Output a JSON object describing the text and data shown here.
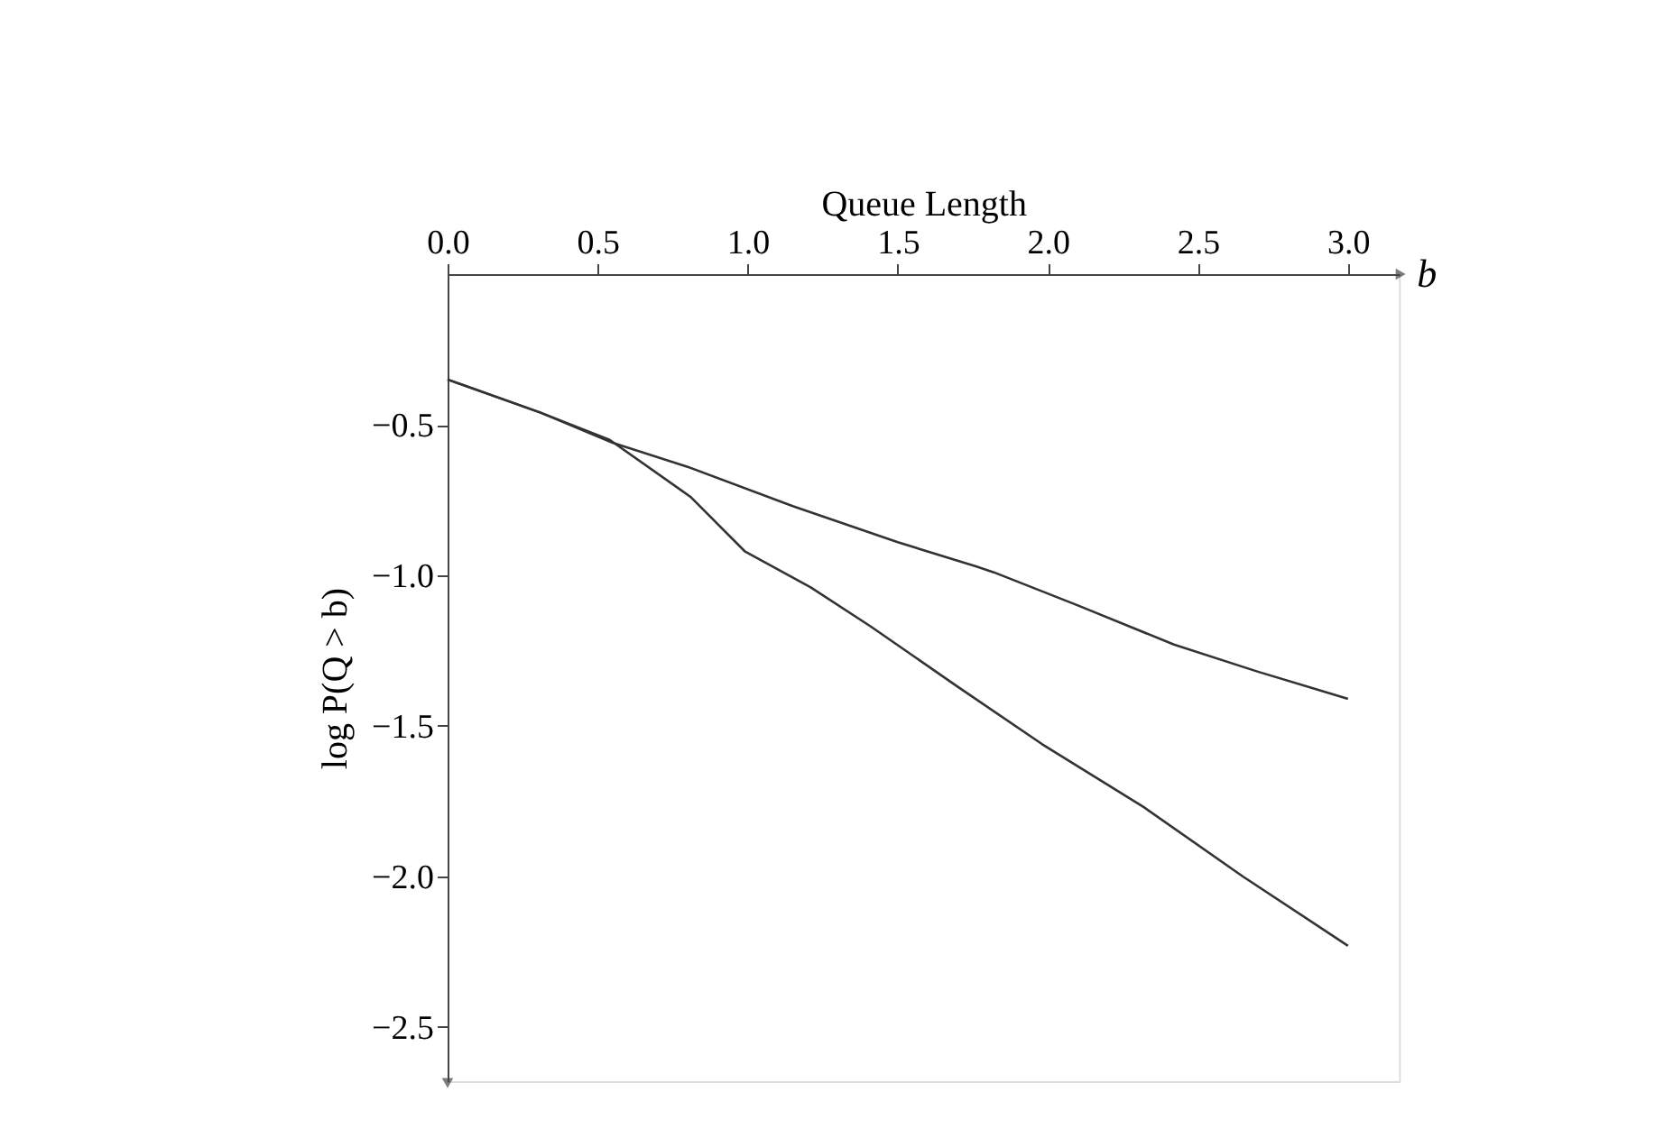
{
  "chart_data": {
    "type": "line",
    "xlabel": "Queue Length",
    "ylabel": "log P(Q > b)",
    "annotations": [
      "b"
    ],
    "xlim": [
      0,
      3.17
    ],
    "ylim": [
      -2.68,
      0
    ],
    "xticks": [
      {
        "value": 0,
        "label": "0.0"
      },
      0.5,
      {
        "value": 1,
        "label": "1.0"
      },
      1.5,
      {
        "value": 2,
        "label": "2.0"
      },
      2.5,
      {
        "value": 3,
        "label": "3.0"
      }
    ],
    "yticks": [
      -0.5,
      {
        "value": -1,
        "label": "−1.0"
      },
      -1.5,
      {
        "value": -2,
        "label": "−2.0"
      },
      -2.5
    ],
    "grid": false,
    "legend": false,
    "marker": "none",
    "line_style": "solid",
    "series": [
      {
        "color": "#333333",
        "x": [
          0,
          0.31,
          0.55,
          0.8,
          1.15,
          1.5,
          1.76,
          1.82,
          2.1,
          2.42,
          2.7,
          3.0
        ],
        "values": [
          -0.35,
          -0.46,
          -0.56,
          -0.64,
          -0.77,
          -0.89,
          -0.97,
          -0.99,
          -1.1,
          -1.23,
          -1.32,
          -1.41
        ]
      },
      {
        "color": "#333333",
        "x": [
          0,
          0.31,
          0.54,
          0.81,
          0.99,
          1.21,
          1.41,
          1.7,
          1.98,
          2.32,
          2.65,
          3.0
        ],
        "values": [
          -0.35,
          -0.46,
          -0.55,
          -0.74,
          -0.92,
          -1.04,
          -1.17,
          -1.37,
          -1.56,
          -1.77,
          -2.0,
          -2.23
        ]
      }
    ]
  }
}
